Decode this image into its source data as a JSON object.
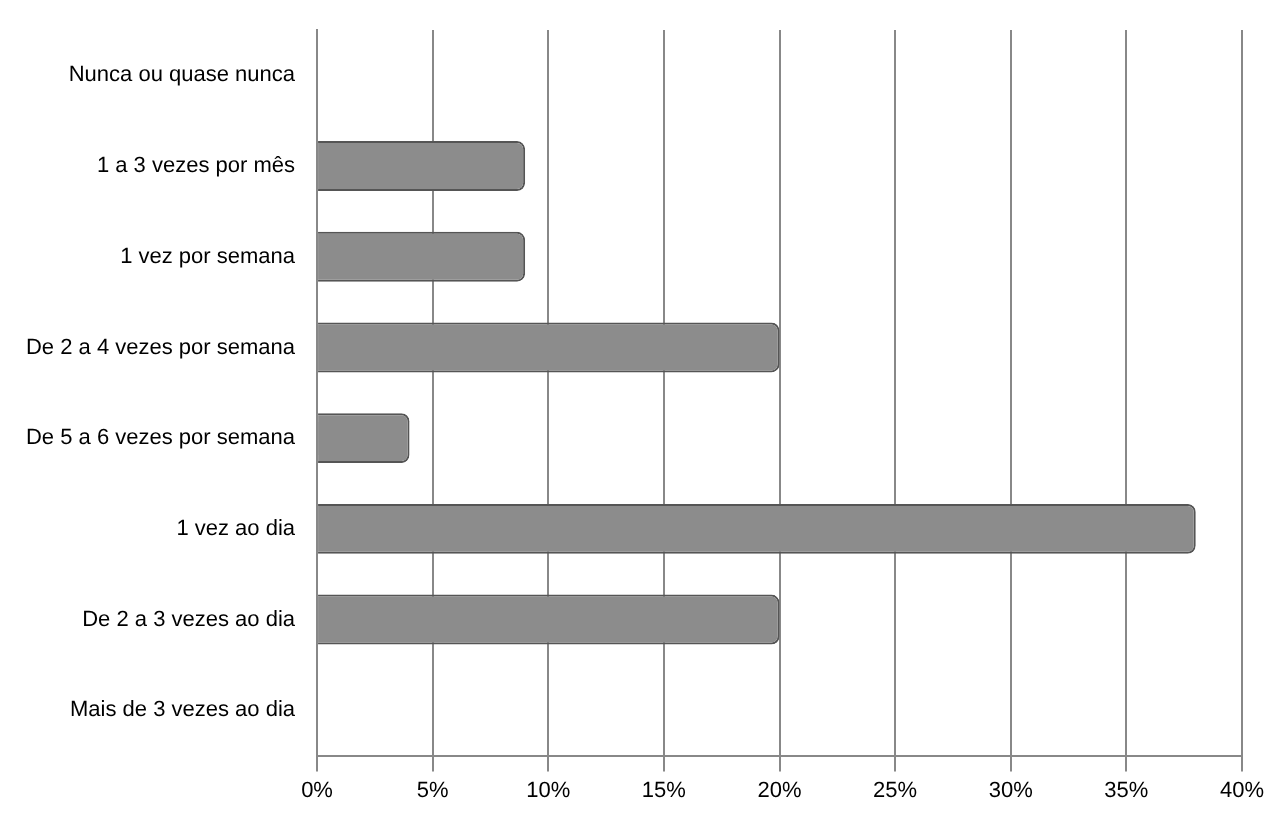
{
  "chart_data": {
    "type": "bar",
    "orientation": "horizontal",
    "categories": [
      "Nunca ou quase nunca",
      "1 a 3 vezes por mês",
      "1 vez por semana",
      "De 2 a 4 vezes por semana",
      "De 5 a 6 vezes por semana",
      "1 vez ao dia",
      "De 2 a 3 vezes ao dia",
      "Mais de 3 vezes ao dia"
    ],
    "values": [
      0,
      9,
      9,
      20,
      4,
      38,
      20,
      0
    ],
    "color": "#8c8c8c",
    "xlim": [
      0,
      40
    ],
    "xticks": [
      {
        "value": 0,
        "label": "0%"
      },
      {
        "value": 5,
        "label": "5%"
      },
      {
        "value": 10,
        "label": "10%"
      },
      {
        "value": 15,
        "label": "15%"
      },
      {
        "value": 20,
        "label": "20%"
      },
      {
        "value": 25,
        "label": "25%"
      },
      {
        "value": 30,
        "label": "30%"
      },
      {
        "value": 35,
        "label": "35%"
      },
      {
        "value": 40,
        "label": "40%"
      }
    ],
    "grid": "x",
    "legend": false
  }
}
